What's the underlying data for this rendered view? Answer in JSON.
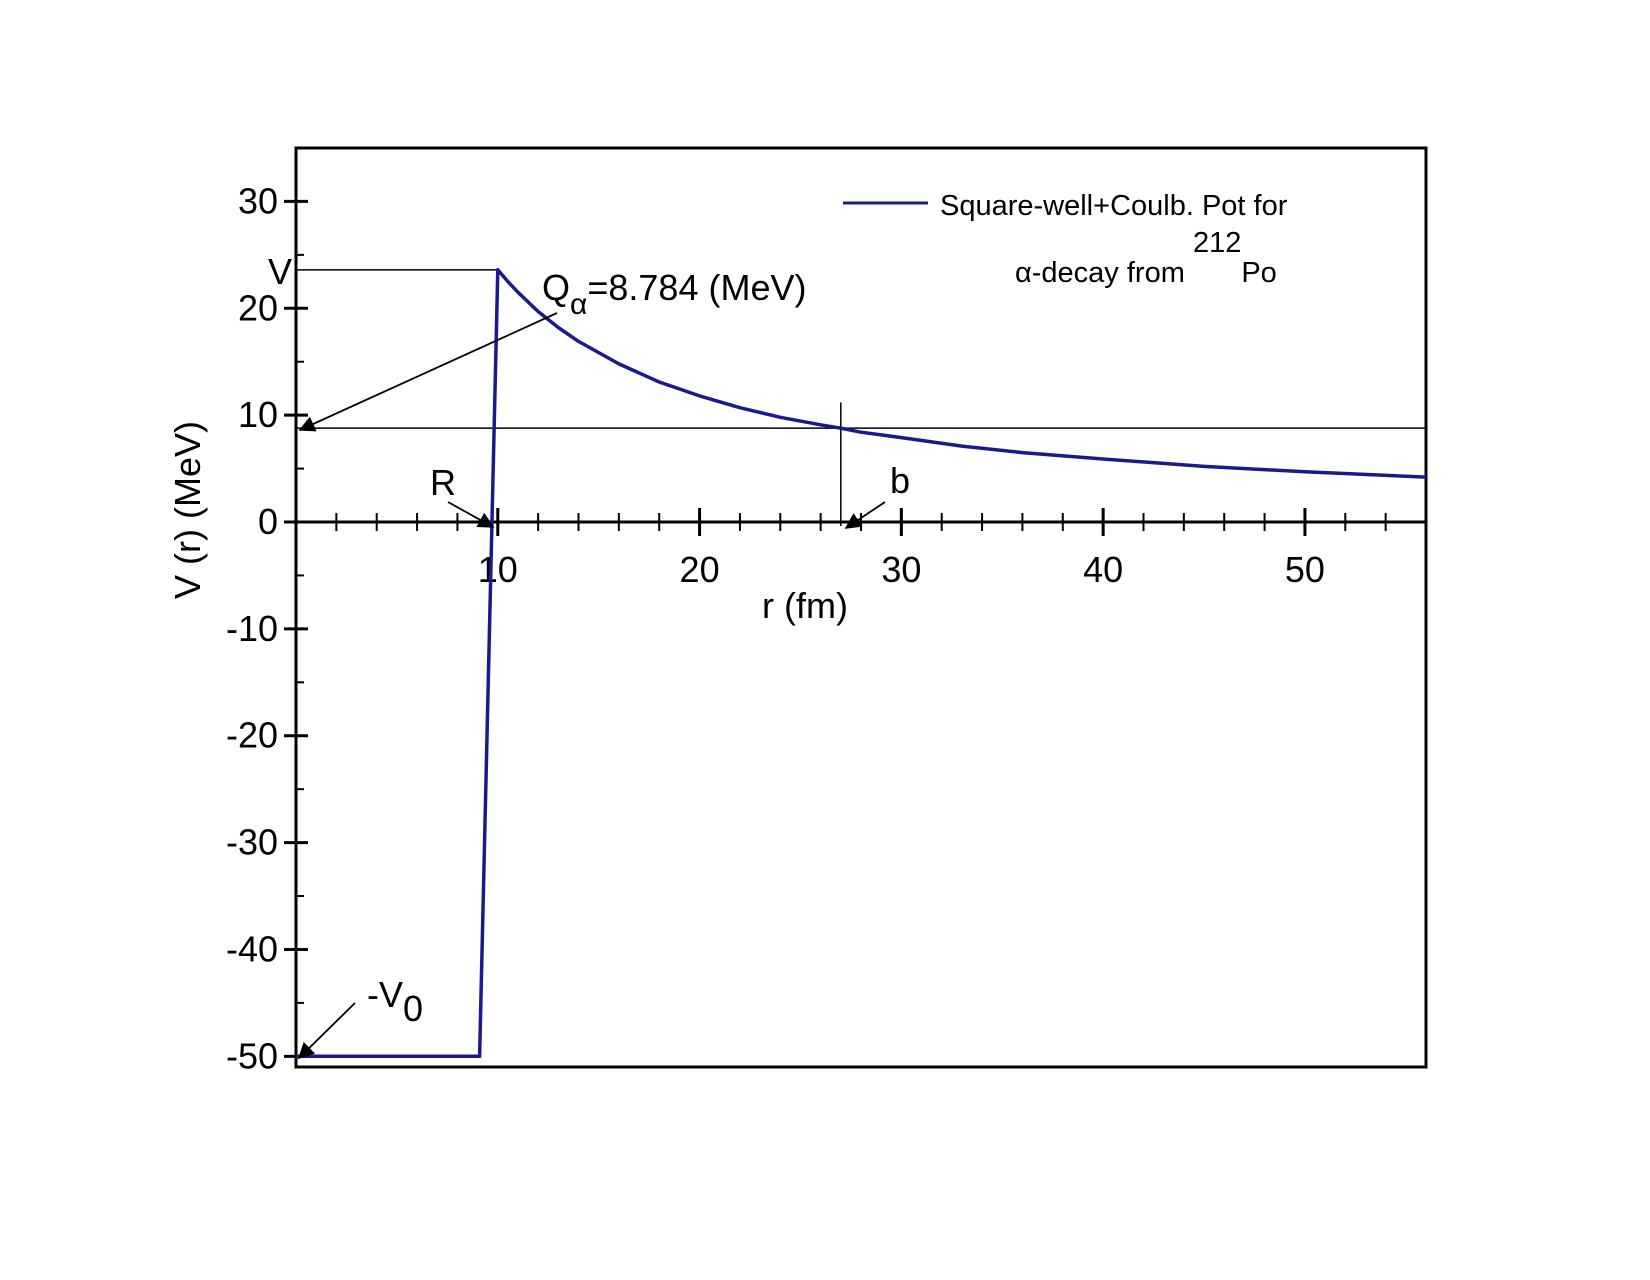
{
  "chart_data": {
    "type": "line",
    "title": "",
    "xlabel": "r (fm)",
    "ylabel": "V (r) (MeV)",
    "xlim": [
      0,
      56
    ],
    "ylim": [
      -51,
      35
    ],
    "x_ticks": [
      10,
      20,
      30,
      40,
      50
    ],
    "y_ticks": [
      -50,
      -40,
      -30,
      -20,
      -10,
      0,
      10,
      20,
      30
    ],
    "x_minor_step": 2,
    "y_minor_step": 5,
    "grid": false,
    "legend": {
      "position": "top-right",
      "line1": "Square-well+Coulb. Pot for",
      "line2_prefix": "α-decay from ",
      "line2_sup": "212",
      "line2_suffix": "Po"
    },
    "series": [
      {
        "name": "Square-well+Coulb. Pot for α-decay from 212Po",
        "color": "#1a1a8c",
        "x": [
          0,
          9.1,
          10,
          10.5,
          11,
          12,
          13,
          14,
          16,
          18,
          20,
          22,
          24,
          26,
          27,
          28,
          30,
          33,
          36,
          40,
          45,
          50,
          56
        ],
        "y": [
          -50,
          -50,
          23.6,
          22.5,
          21.5,
          19.7,
          18.2,
          16.9,
          14.8,
          13.1,
          11.8,
          10.7,
          9.8,
          9.1,
          8.78,
          8.4,
          7.9,
          7.1,
          6.5,
          5.9,
          5.2,
          4.7,
          4.2
        ]
      }
    ],
    "reference_lines": {
      "q_alpha_y": 8.784,
      "barrier_top_y": 23.6,
      "b_x": 27
    },
    "annotations": {
      "v_label": "V",
      "q_label": "Q",
      "q_sub": "α",
      "q_value": "=8.784 (MeV)",
      "r_label": "R",
      "b_label": "b",
      "v0_label": "-V",
      "v0_sub": "0"
    }
  }
}
